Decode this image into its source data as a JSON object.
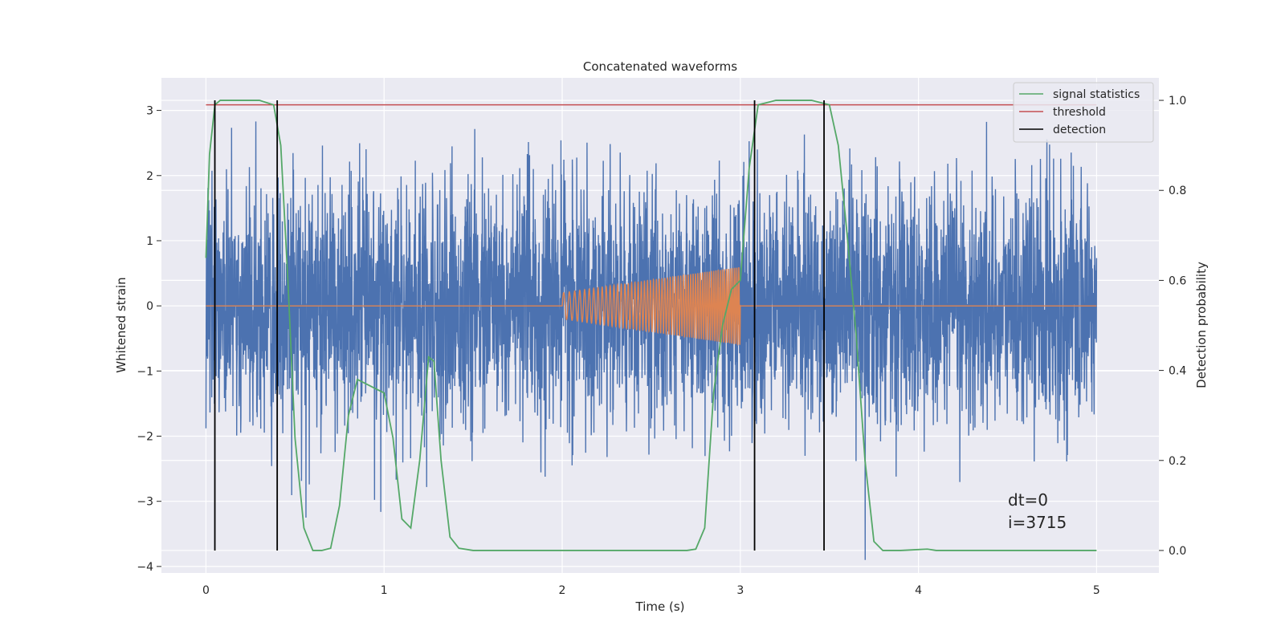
{
  "chart_data": {
    "type": "line",
    "title": "Concatenated waveforms",
    "xlabel": "Time (s)",
    "ylabel": "Whitened strain",
    "y2label": "Detection probability",
    "xlim": [
      -0.25,
      5.35
    ],
    "ylim": [
      -4.1,
      3.5
    ],
    "y2lim": [
      -0.05,
      1.05
    ],
    "x_ticks": [
      0,
      1,
      2,
      3,
      4,
      5
    ],
    "y_ticks": [
      -4,
      -3,
      -2,
      -1,
      0,
      1,
      2,
      3
    ],
    "y2_ticks": [
      0.0,
      0.2,
      0.4,
      0.6,
      0.8,
      1.0
    ],
    "x_tick_labels": [
      "0",
      "1",
      "2",
      "3",
      "4",
      "5"
    ],
    "y_tick_labels": [
      "−4",
      "−3",
      "−2",
      "−1",
      "0",
      "1",
      "2",
      "3"
    ],
    "y2_tick_labels": [
      "0.0",
      "0.2",
      "0.4",
      "0.6",
      "0.8",
      "1.0"
    ],
    "grid": true,
    "legend_position": "top-right",
    "series": [
      {
        "kind": "noise",
        "axis": "left",
        "color": "#4c72b0",
        "x_range": [
          0,
          5
        ],
        "approx_std": 0.9,
        "approx_min": -3.9,
        "approx_max": 3.15
      },
      {
        "kind": "chirp",
        "axis": "left",
        "color": "#dd8452",
        "x_range": [
          0,
          5
        ],
        "chirp_start": 2.0,
        "chirp_end": 3.0,
        "amplitude_start": 0.2,
        "amplitude_end": 0.6
      },
      {
        "name": "signal statistics",
        "axis": "right",
        "color": "#55a868",
        "x": [
          0.0,
          0.02,
          0.05,
          0.08,
          0.15,
          0.3,
          0.38,
          0.42,
          0.46,
          0.5,
          0.55,
          0.6,
          0.65,
          0.7,
          0.75,
          0.8,
          0.85,
          0.9,
          0.95,
          1.0,
          1.05,
          1.1,
          1.15,
          1.2,
          1.25,
          1.28,
          1.32,
          1.37,
          1.42,
          1.5,
          1.6,
          2.0,
          2.7,
          2.75,
          2.8,
          2.85,
          2.9,
          2.95,
          3.0,
          3.05,
          3.1,
          3.2,
          3.4,
          3.5,
          3.55,
          3.6,
          3.65,
          3.7,
          3.75,
          3.8,
          3.9,
          4.0,
          4.05,
          4.1,
          4.3,
          5.0
        ],
        "y": [
          0.65,
          0.88,
          0.99,
          1.0,
          1.0,
          1.0,
          0.99,
          0.9,
          0.6,
          0.25,
          0.05,
          0.0,
          0.0,
          0.005,
          0.1,
          0.3,
          0.38,
          0.37,
          0.36,
          0.35,
          0.25,
          0.07,
          0.05,
          0.2,
          0.43,
          0.42,
          0.2,
          0.03,
          0.005,
          0.0,
          0.0,
          0.0,
          0.0,
          0.003,
          0.05,
          0.35,
          0.5,
          0.58,
          0.6,
          0.85,
          0.99,
          1.0,
          1.0,
          0.99,
          0.9,
          0.7,
          0.48,
          0.2,
          0.02,
          0.0,
          0.0,
          0.002,
          0.003,
          0.0,
          0.0,
          0.0
        ]
      },
      {
        "name": "threshold",
        "axis": "right",
        "color": "#c44e52",
        "x": [
          0,
          5
        ],
        "y": [
          0.99,
          0.99
        ]
      },
      {
        "name": "detection",
        "axis": "right",
        "color": "#000000",
        "type": "vlines",
        "x": [
          0.05,
          0.4,
          3.08,
          3.47
        ],
        "ymin": 0.0,
        "ymax": 1.0
      }
    ],
    "annotations": [
      "dt=0",
      "i=3715"
    ]
  }
}
